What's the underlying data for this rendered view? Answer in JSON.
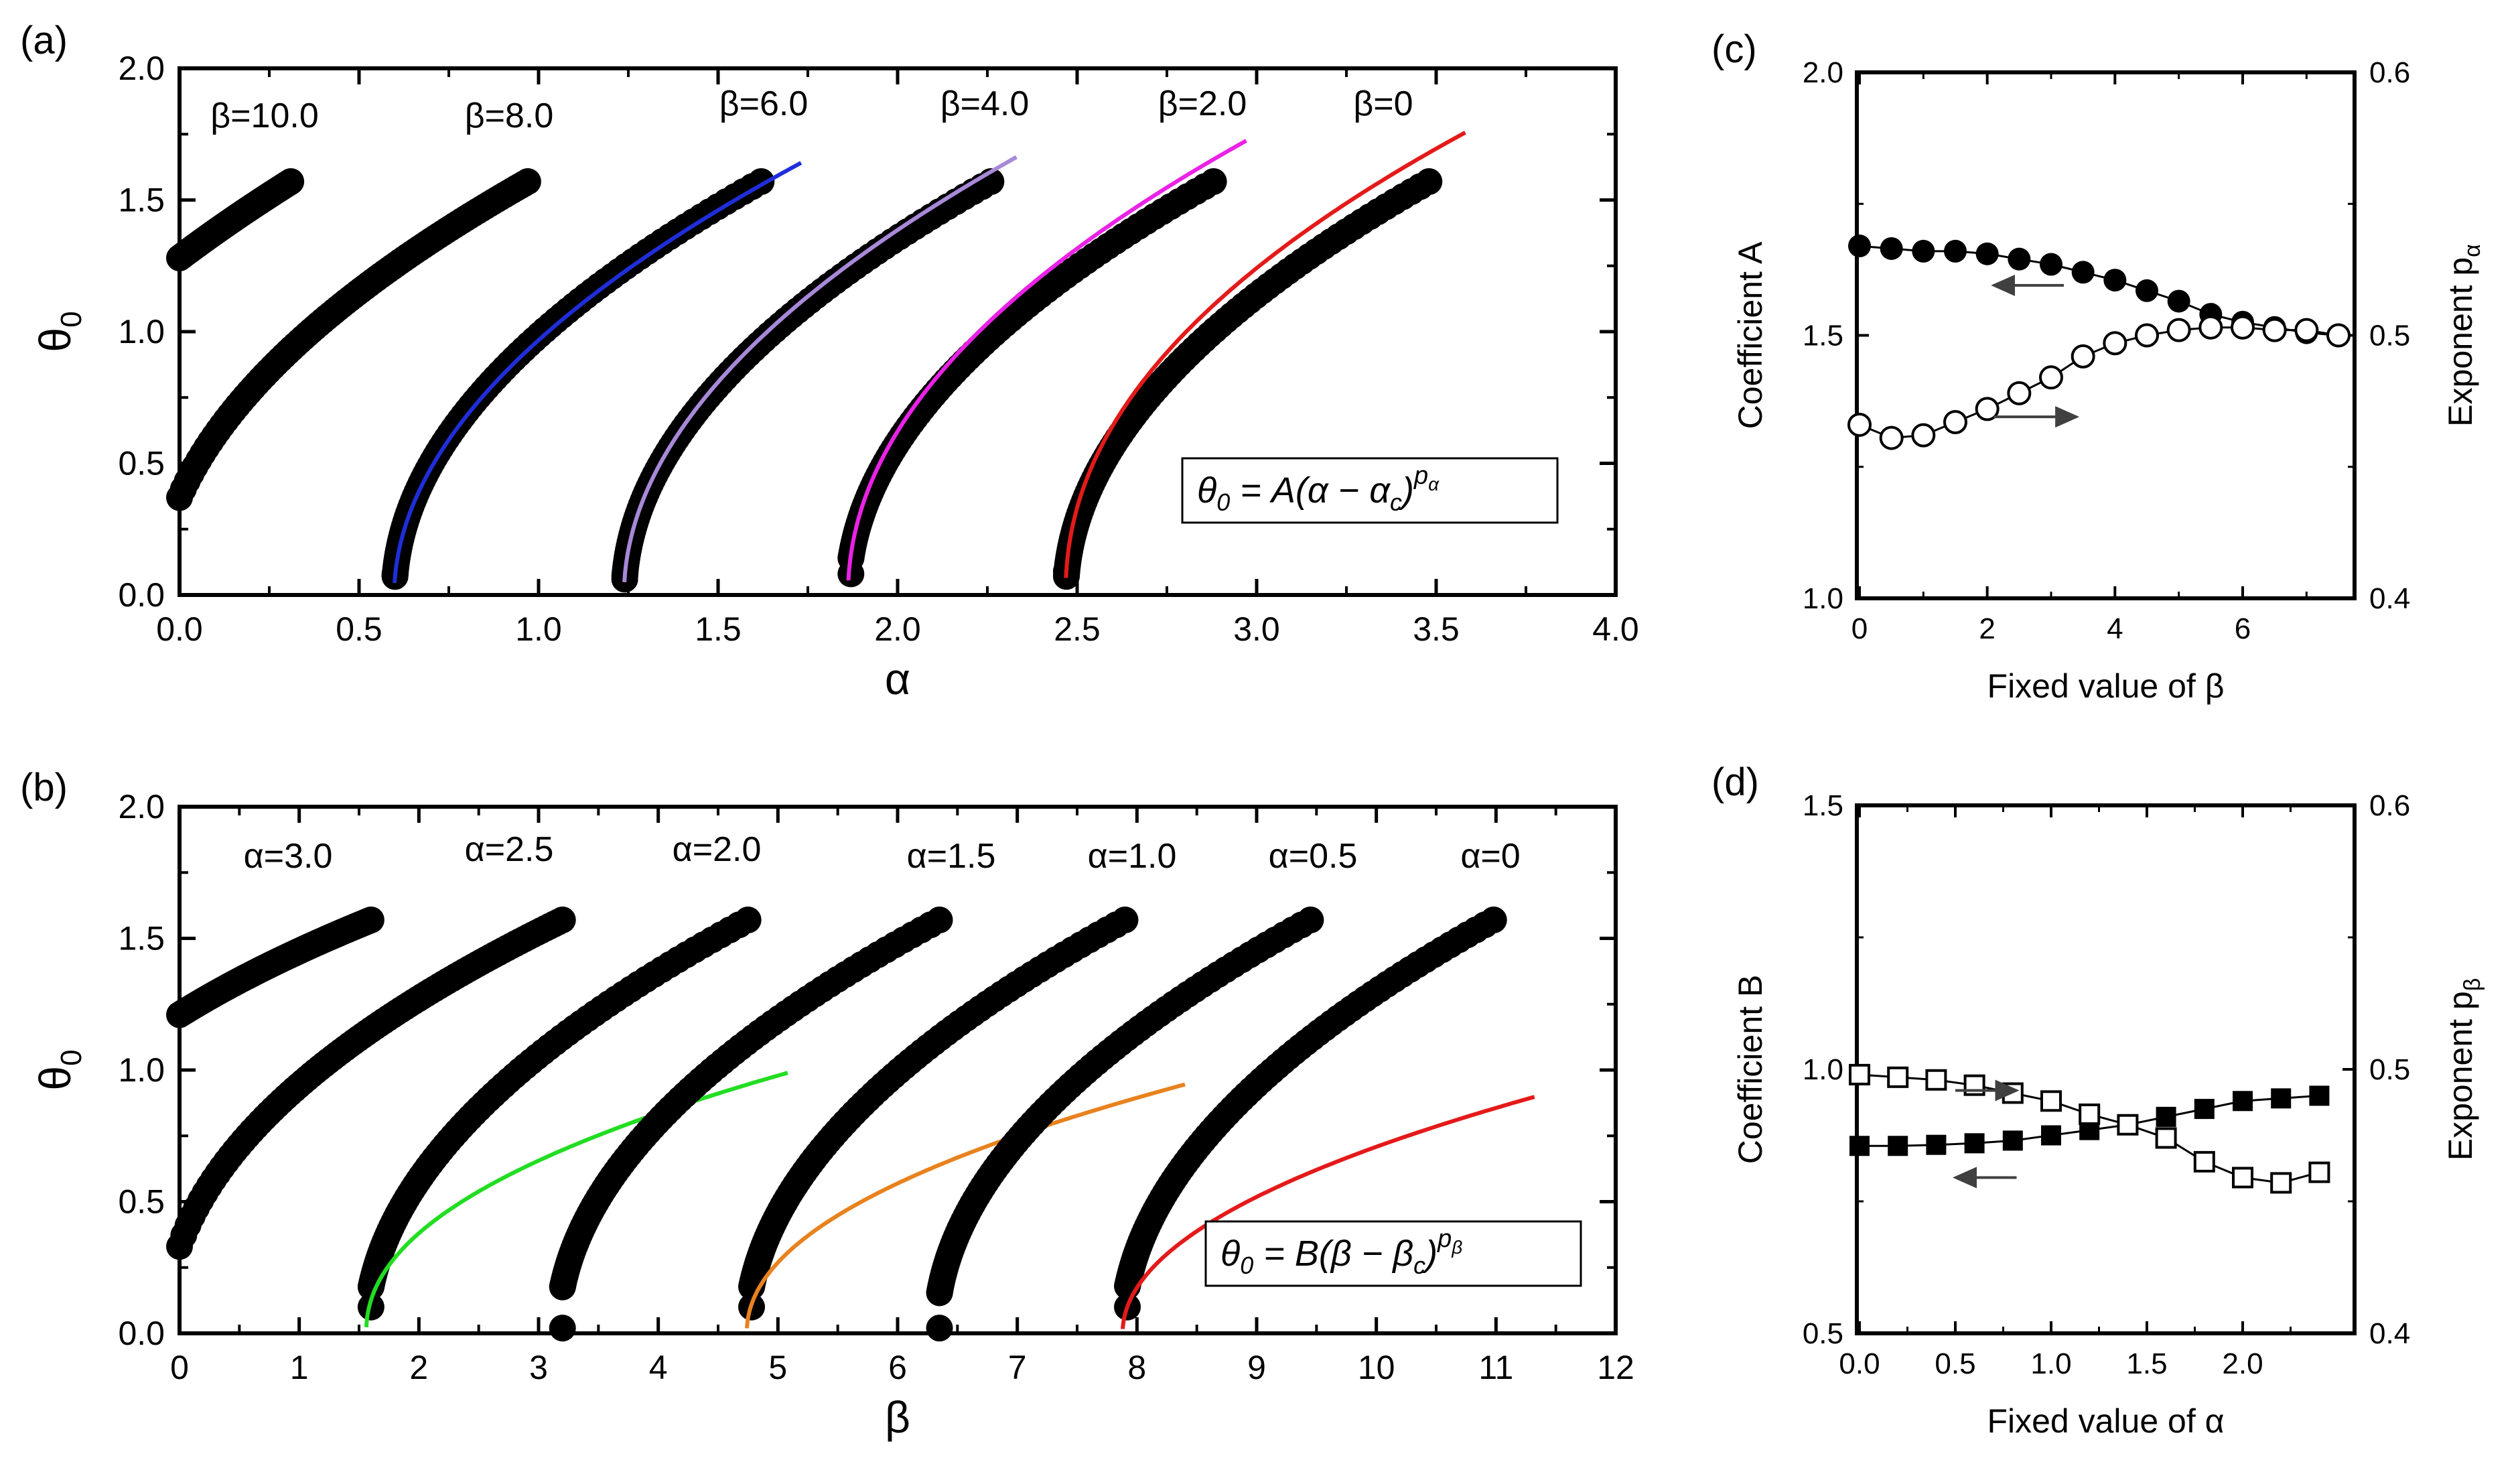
{
  "chart_data": [
    {
      "panel_label": "(a)",
      "type": "scatter",
      "xlabel": "α",
      "ylabel": "θ",
      "ylabel_sub": "0",
      "xlim": [
        0,
        4.0
      ],
      "ylim": [
        0,
        2.0
      ],
      "xticks": [
        "0.0",
        "0.5",
        "1.0",
        "1.5",
        "2.0",
        "2.5",
        "3.0",
        "3.5",
        "4.0"
      ],
      "yticks": [
        "0.0",
        "0.5",
        "1.0",
        "1.5",
        "2.0"
      ],
      "equation": {
        "lhs": "θ",
        "sub": "0",
        "rhs": " = A(α − α",
        "sub2": "c",
        "close": ")",
        "exp": "p",
        "exp_sub": "α"
      },
      "series": [
        {
          "name": "β=10.0",
          "x_start": 0.0,
          "x_end": 0.31,
          "y_start": 1.28,
          "y_end": 1.57,
          "kind": "shifted",
          "x_c": -0.66
        },
        {
          "name": "β=8.0",
          "x_start": 0.0,
          "x_end": 0.97,
          "y_start": 0.37,
          "y_end": 1.57,
          "kind": "shifted",
          "x_c": -0.06
        },
        {
          "name": "β=6.0",
          "x_start": 0.6,
          "x_end": 1.62,
          "y_start": 0.08,
          "y_end": 1.57,
          "kind": "onset",
          "x_c": 0.598,
          "fit": {
            "color": "#1f2ed8",
            "A": 1.54,
            "p": 0.51,
            "x_end": 1.73
          }
        },
        {
          "name": "β=4.0",
          "x_start": 1.24,
          "x_end": 2.26,
          "y_start": 0.06,
          "y_end": 1.57,
          "kind": "onset",
          "x_c": 1.238,
          "fit": {
            "color": "#a889d8",
            "A": 1.59,
            "p": 0.505,
            "x_end": 2.33
          }
        },
        {
          "name": "β=2.0",
          "x_start": 1.87,
          "x_end": 2.88,
          "y_start": 0.08,
          "y_end": 1.57,
          "kind": "onset",
          "x_c": 1.862,
          "fit": {
            "color": "#ea22e6",
            "A": 1.64,
            "p": 0.49,
            "x_end": 2.97
          }
        },
        {
          "name": "β=0",
          "x_start": 2.47,
          "x_end": 3.48,
          "y_start": 0.09,
          "y_end": 1.57,
          "kind": "onset",
          "x_c": 2.468,
          "fit": {
            "color": "#e41a1a",
            "A": 1.67,
            "p": 0.47,
            "x_end": 3.58
          }
        }
      ]
    },
    {
      "panel_label": "(b)",
      "type": "scatter",
      "xlabel": "β",
      "ylabel": "θ",
      "ylabel_sub": "0",
      "xlim": [
        0,
        12
      ],
      "ylim": [
        0,
        2.0
      ],
      "xticks": [
        "0",
        "1",
        "2",
        "3",
        "4",
        "5",
        "6",
        "7",
        "8",
        "9",
        "10",
        "11",
        "12"
      ],
      "yticks": [
        "0.0",
        "0.5",
        "1.0",
        "1.5",
        "2.0"
      ],
      "equation": {
        "lhs": "θ",
        "sub": "0",
        "rhs": " = B(β − β",
        "sub2": "c",
        "close": ")",
        "exp": "p",
        "exp_sub": "β"
      },
      "series": [
        {
          "name": "α=3.0",
          "x_start": 0.0,
          "x_end": 1.6,
          "y_start": 1.21,
          "y_end": 1.57,
          "kind": "shifted",
          "x_c": -1.62
        },
        {
          "name": "α=2.5",
          "x_start": 0.0,
          "x_end": 3.2,
          "y_start": 0.33,
          "y_end": 1.57,
          "kind": "shifted",
          "x_c": -0.12
        },
        {
          "name": "α=2.0",
          "x_start": 1.6,
          "x_end": 4.75,
          "y_start": 0.1,
          "y_end": 1.57,
          "kind": "onset",
          "x_c": 1.56,
          "fit": {
            "color": "#22dd22",
            "A": 0.94,
            "p": 0.46,
            "x_end": 5.08
          }
        },
        {
          "name": "α=1.5",
          "x_start": 3.2,
          "x_end": 6.35,
          "y_start": 0.02,
          "y_end": 1.57,
          "kind": "onset",
          "x_c": 3.16,
          "fit": null
        },
        {
          "name": "α=1.0",
          "x_start": 4.78,
          "x_end": 7.9,
          "y_start": 0.1,
          "y_end": 1.57,
          "kind": "onset",
          "x_c": 4.74,
          "fit": {
            "color": "#e8821e",
            "A": 0.88,
            "p": 0.475,
            "x_end": 8.4
          }
        },
        {
          "name": "α=0.5",
          "x_start": 6.35,
          "x_end": 9.45,
          "y_start": 0.02,
          "y_end": 1.57,
          "kind": "onset",
          "x_c": 6.32,
          "fit": null
        },
        {
          "name": "α=0",
          "x_start": 7.92,
          "x_end": 10.98,
          "y_start": 0.1,
          "y_end": 1.57,
          "kind": "onset",
          "x_c": 7.88,
          "fit": {
            "color": "#e41a1a",
            "A": 0.86,
            "p": 0.49,
            "x_end": 11.32
          }
        }
      ]
    },
    {
      "panel_label": "(c)",
      "type": "line",
      "xlabel": "Fixed value of β",
      "ylabel_left": "Coefficient A",
      "ylabel_right": "Exponent p",
      "ylabel_right_sub": "α",
      "xlim": [
        0,
        7.5
      ],
      "ylim_left": [
        1.0,
        2.0
      ],
      "ylim_right": [
        0.4,
        0.6
      ],
      "xticks": [
        {
          "v": 0,
          "t": "0"
        },
        {
          "v": 2,
          "t": "2"
        },
        {
          "v": 4,
          "t": "4"
        },
        {
          "v": 6,
          "t": "6"
        }
      ],
      "yticks_left": [
        "1.0",
        "1.5",
        "2.0"
      ],
      "yticks_right": [
        "0.4",
        "0.5",
        "0.6"
      ],
      "x": [
        0,
        0.5,
        1.0,
        1.5,
        2.0,
        2.5,
        3.0,
        3.5,
        4.0,
        4.5,
        5.0,
        5.5,
        6.0,
        6.5,
        7.0,
        7.5
      ],
      "series": [
        {
          "axis": "left",
          "marker": "filled-circle",
          "values": [
            1.67,
            1.665,
            1.66,
            1.66,
            1.655,
            1.645,
            1.635,
            1.62,
            1.605,
            1.585,
            1.565,
            1.54,
            1.525,
            1.515,
            1.505,
            1.5
          ]
        },
        {
          "axis": "right",
          "marker": "open-circle",
          "values": [
            0.466,
            0.461,
            0.462,
            0.467,
            0.472,
            0.478,
            0.484,
            0.492,
            0.497,
            0.5,
            0.502,
            0.503,
            0.503,
            0.502,
            0.502,
            0.5
          ]
        }
      ],
      "arrows": [
        {
          "direction": "left",
          "x": [
            3.2,
            2.1
          ],
          "y_left": 1.595
        },
        {
          "direction": "right",
          "x": [
            2.1,
            3.4
          ],
          "y_left": 1.345
        }
      ]
    },
    {
      "panel_label": "(d)",
      "type": "line",
      "xlabel": "Fixed value of α",
      "ylabel_left": "Coefficient B",
      "ylabel_right": "Exponent p",
      "ylabel_right_sub": "β",
      "xlim": [
        0,
        2.5
      ],
      "ylim_left": [
        0.5,
        1.5
      ],
      "ylim_right": [
        0.4,
        0.6
      ],
      "xticks": [
        {
          "v": 0,
          "t": "0.0"
        },
        {
          "v": 0.5,
          "t": "0.5"
        },
        {
          "v": 1.0,
          "t": "1.0"
        },
        {
          "v": 1.5,
          "t": "1.5"
        },
        {
          "v": 2.0,
          "t": "2.0"
        }
      ],
      "yticks_left": [
        "0.5",
        "1.0",
        "1.5"
      ],
      "yticks_right": [
        "0.4",
        "0.5",
        "0.6"
      ],
      "x": [
        0,
        0.2,
        0.4,
        0.6,
        0.8,
        1.0,
        1.2,
        1.4,
        1.6,
        1.8,
        2.0,
        2.2,
        2.4
      ],
      "series": [
        {
          "axis": "left",
          "marker": "filled-square",
          "values": [
            0.855,
            0.855,
            0.857,
            0.86,
            0.865,
            0.875,
            0.885,
            0.895,
            0.91,
            0.925,
            0.94,
            0.945,
            0.95
          ]
        },
        {
          "axis": "right",
          "marker": "open-square",
          "values": [
            0.498,
            0.497,
            0.496,
            0.494,
            0.491,
            0.488,
            0.483,
            0.479,
            0.474,
            0.465,
            0.459,
            0.457,
            0.461
          ]
        }
      ],
      "arrows": [
        {
          "direction": "right",
          "x": [
            0.5,
            0.82
          ],
          "y_left": 0.96
        },
        {
          "direction": "left",
          "x": [
            0.82,
            0.5
          ],
          "y_left": 0.795
        }
      ]
    }
  ]
}
